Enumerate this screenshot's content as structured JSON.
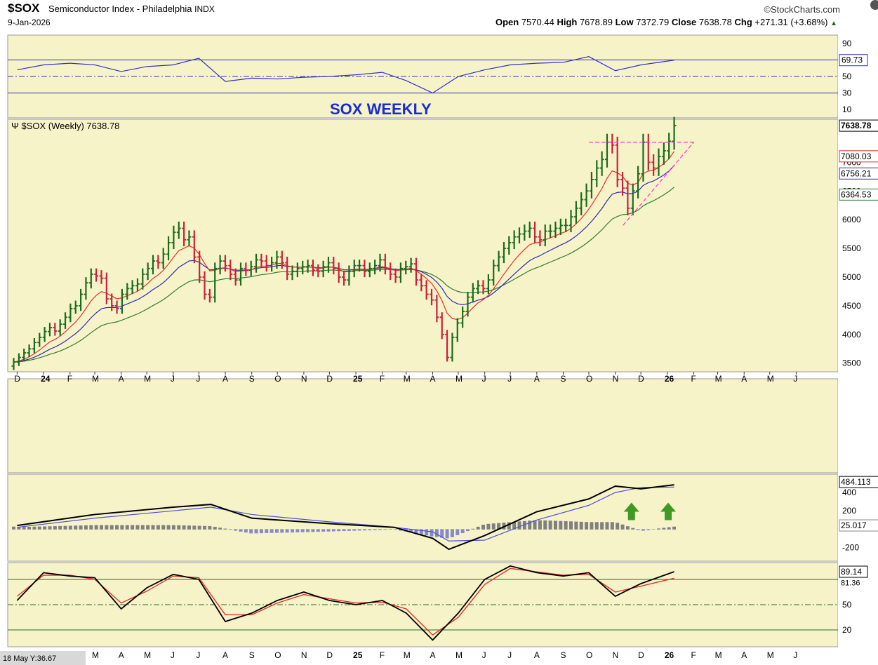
{
  "header": {
    "symbol": "$SOX",
    "name": "Semiconductor Index - Philadelphia",
    "exchange": "INDX",
    "date": "9-Jan-2026",
    "source": "©StockCharts.com",
    "open_label": "Open",
    "open": "7570.44",
    "high_label": "High",
    "high": "7678.89",
    "low_label": "Low",
    "low": "7372.79",
    "close_label": "Close",
    "close": "7638.78",
    "chg_label": "Chg",
    "chg": "+271.31 (+3.68%)",
    "chg_dir": "▲"
  },
  "colors": {
    "panel_bg": "#f7f3c9",
    "up": "#1b6b1b",
    "down": "#c8213b",
    "ma_red": "#e0332b",
    "ma_blue": "#2b2bb3",
    "ma_green": "#2f7a2f",
    "rsi_line": "#3030c8",
    "macd_line": "#000000",
    "signal_line": "#5050d8",
    "hist": "#808080",
    "hist_neg": "#8888cc",
    "trendline": "#ff33cc",
    "arrow": "#3f9a25",
    "title": "#1a2bd6"
  },
  "chart_data": [
    {
      "panel": "RSI",
      "type": "line",
      "ticks": [
        "90",
        "50",
        "30",
        "10"
      ],
      "tick_values": [
        90,
        50,
        30,
        10
      ],
      "levels": [
        70,
        50,
        30
      ],
      "current_label": "69.73",
      "current": 69.73,
      "ylim": [
        0,
        100
      ],
      "annotation": "SOX WEEKLY",
      "x": [
        "2023-12-01",
        "2024-01-01",
        "2024-02-01",
        "2024-03-01",
        "2024-04-01",
        "2024-05-01",
        "2024-06-01",
        "2024-07-01",
        "2024-08-01",
        "2024-09-01",
        "2024-10-01",
        "2024-11-01",
        "2024-12-01",
        "2025-01-01",
        "2025-02-01",
        "2025-03-01",
        "2025-04-01",
        "2025-05-01",
        "2025-06-01",
        "2025-07-01",
        "2025-08-01",
        "2025-09-01",
        "2025-10-01",
        "2025-11-01",
        "2025-12-01",
        "2026-01-09"
      ],
      "values": [
        58,
        64,
        66,
        64,
        56,
        62,
        64,
        72,
        44,
        48,
        47,
        49,
        50,
        52,
        55,
        45,
        30,
        50,
        58,
        64,
        66,
        67,
        74,
        57,
        64,
        69.73
      ]
    },
    {
      "panel": "price",
      "type": "ohlc",
      "legend": "$SOX (Weekly) 7638.78",
      "ticks": [
        "3500",
        "4000",
        "4500",
        "5000",
        "5500",
        "6000",
        "6500",
        "7000"
      ],
      "tick_values": [
        3500,
        4000,
        4500,
        5000,
        5500,
        6000,
        6500,
        7000
      ],
      "ylim": [
        3350,
        7750
      ],
      "last_labels": [
        {
          "label": "7638.78",
          "value": 7638.78
        },
        {
          "label": "7080.03",
          "value": 7080.03
        },
        {
          "label": "6756.21",
          "value": 6756.21
        },
        {
          "label": "6364.53",
          "value": 6364.53
        }
      ],
      "x_axis": [
        "D",
        "24",
        "F",
        "M",
        "A",
        "M",
        "J",
        "J",
        "A",
        "S",
        "O",
        "N",
        "D",
        "25",
        "F",
        "M",
        "A",
        "M",
        "J",
        "J",
        "A",
        "S",
        "O",
        "N",
        "D",
        "26",
        "F",
        "M",
        "A",
        "M",
        "J"
      ],
      "closes": [
        3520,
        3600,
        3680,
        3750,
        3860,
        3950,
        4050,
        4120,
        4060,
        4180,
        4300,
        4450,
        4500,
        4700,
        4900,
        5050,
        5020,
        4980,
        4620,
        4500,
        4450,
        4700,
        4800,
        4850,
        4880,
        5050,
        5150,
        5280,
        5250,
        5400,
        5600,
        5780,
        5850,
        5650,
        5700,
        5350,
        5000,
        4700,
        4650,
        5150,
        5280,
        5200,
        5050,
        4950,
        5150,
        5120,
        5180,
        5300,
        5280,
        5200,
        5250,
        5350,
        5250,
        5050,
        5100,
        5150,
        5180,
        5200,
        5120,
        5100,
        5180,
        5250,
        5150,
        5000,
        4950,
        5100,
        5200,
        5200,
        5100,
        5150,
        5200,
        5300,
        5150,
        5050,
        5000,
        5150,
        5180,
        5230,
        4950,
        4850,
        4700,
        4600,
        4300,
        4000,
        3600,
        3950,
        4200,
        4400,
        4650,
        4800,
        4850,
        4800,
        4950,
        5200,
        5350,
        5500,
        5600,
        5700,
        5750,
        5800,
        5850,
        5700,
        5650,
        5800,
        5800,
        5850,
        5900,
        5900,
        6050,
        6200,
        6350,
        6500,
        6700,
        6900,
        7050,
        7350,
        7300,
        6700,
        6550,
        6200,
        6500,
        6800,
        7350,
        7000,
        6900,
        7100,
        7200,
        7367,
        7638.78
      ],
      "ma_red_label": "7080.03",
      "ma_blue_label": "6756.21",
      "ma_green_label": "6364.53",
      "resistance": 7350
    },
    {
      "panel": "MACD",
      "type": "line",
      "ticks": [
        "400",
        "200",
        "-200"
      ],
      "tick_values": [
        400,
        200,
        -200
      ],
      "ylim": [
        -350,
        600
      ],
      "macd_label": "484.113",
      "macd_current": 484.113,
      "hist_label": "25.017",
      "hist_current": 25.017,
      "x": [
        "2023-12-01",
        "2024-03-01",
        "2024-06-01",
        "2024-07-15",
        "2024-09-01",
        "2024-12-01",
        "2025-02-15",
        "2025-04-01",
        "2025-04-20",
        "2025-06-01",
        "2025-08-01",
        "2025-10-01",
        "2025-11-01",
        "2025-12-01",
        "2026-01-09"
      ],
      "macd": [
        40,
        160,
        240,
        270,
        120,
        60,
        20,
        -100,
        -220,
        -70,
        190,
        330,
        470,
        440,
        484.113
      ],
      "signal": [
        20,
        120,
        200,
        240,
        160,
        80,
        20,
        -30,
        -130,
        -120,
        100,
        260,
        400,
        455,
        459
      ]
    },
    {
      "panel": "Stochastic",
      "type": "line",
      "ticks": [
        "50",
        "20"
      ],
      "tick_values": [
        50,
        20
      ],
      "levels": [
        80,
        50,
        20
      ],
      "k_label": "89.14",
      "k_current": 89.14,
      "d_label": "81.36",
      "d_current": 81.36,
      "ylim": [
        0,
        100
      ],
      "x": [
        "2023-12-01",
        "2024-01-01",
        "2024-02-01",
        "2024-03-01",
        "2024-04-01",
        "2024-05-01",
        "2024-06-01",
        "2024-07-01",
        "2024-08-01",
        "2024-09-01",
        "2024-10-01",
        "2024-11-01",
        "2024-12-01",
        "2025-01-01",
        "2025-02-01",
        "2025-03-01",
        "2025-04-01",
        "2025-05-01",
        "2025-06-01",
        "2025-07-01",
        "2025-08-01",
        "2025-09-01",
        "2025-10-01",
        "2025-11-01",
        "2025-12-01",
        "2026-01-09"
      ],
      "k": [
        55,
        88,
        84,
        82,
        45,
        70,
        86,
        80,
        30,
        40,
        55,
        65,
        55,
        50,
        55,
        40,
        8,
        40,
        80,
        96,
        88,
        84,
        88,
        60,
        75,
        89.14
      ],
      "d": [
        60,
        85,
        85,
        80,
        52,
        66,
        84,
        82,
        38,
        38,
        52,
        62,
        57,
        52,
        53,
        45,
        14,
        35,
        74,
        93,
        89,
        85,
        86,
        65,
        72,
        81.36
      ]
    }
  ],
  "bottom_axis": [
    "M",
    "A",
    "M",
    "J",
    "J",
    "A",
    "S",
    "O",
    "N",
    "D",
    "25",
    "F",
    "M",
    "A",
    "M",
    "J",
    "J",
    "A",
    "S",
    "O",
    "N",
    "D",
    "26",
    "F",
    "M",
    "A",
    "M",
    "J"
  ],
  "footer_note": "18 May Y:36.67"
}
